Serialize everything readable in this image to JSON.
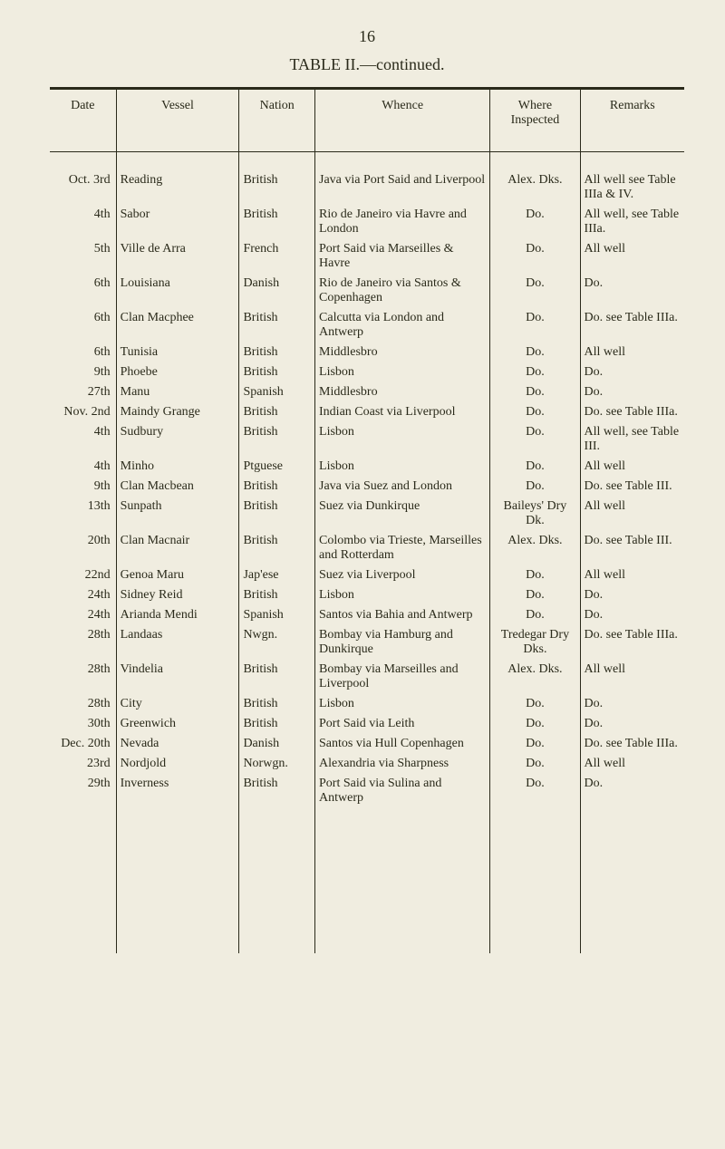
{
  "page_number": "16",
  "table_title": "TABLE II.—continued.",
  "columns": [
    "Date",
    "Vessel",
    "Nation",
    "Whence",
    "Where Inspected",
    "Remarks"
  ],
  "column_where_line2": "Inspected",
  "rows": [
    {
      "date": "Oct. 3rd",
      "vessel": "Reading",
      "nation": "British",
      "whence": "Java via Port Said and Liverpool",
      "where": "Alex. Dks.",
      "remarks": "All well see Table IIIa & IV."
    },
    {
      "date": "4th",
      "vessel": "Sabor",
      "nation": "British",
      "whence": "Rio de Janeiro via Havre and London",
      "where": "Do.",
      "remarks": "All well, see Table IIIa."
    },
    {
      "date": "5th",
      "vessel": "Ville de Arra",
      "nation": "French",
      "whence": "Port Said via Marseilles & Havre",
      "where": "Do.",
      "remarks": "All well"
    },
    {
      "date": "6th",
      "vessel": "Louisiana",
      "nation": "Danish",
      "whence": "Rio de Janeiro via Santos & Copenhagen",
      "where": "Do.",
      "remarks": "Do."
    },
    {
      "date": "6th",
      "vessel": "Clan Macphee",
      "nation": "British",
      "whence": "Calcutta via London and Antwerp",
      "where": "Do.",
      "remarks": "Do. see Table IIIa."
    },
    {
      "date": "6th",
      "vessel": "Tunisia",
      "nation": "British",
      "whence": "Middlesbro",
      "where": "Do.",
      "remarks": "All well"
    },
    {
      "date": "9th",
      "vessel": "Phoebe",
      "nation": "British",
      "whence": "Lisbon",
      "where": "Do.",
      "remarks": "Do."
    },
    {
      "date": "27th",
      "vessel": "Manu",
      "nation": "Spanish",
      "whence": "Middlesbro",
      "where": "Do.",
      "remarks": "Do."
    },
    {
      "date": "Nov. 2nd",
      "vessel": "Maindy Grange",
      "nation": "British",
      "whence": "Indian Coast via Liverpool",
      "where": "Do.",
      "remarks": "Do. see Table IIIa."
    },
    {
      "date": "4th",
      "vessel": "Sudbury",
      "nation": "British",
      "whence": "Lisbon",
      "where": "Do.",
      "remarks": "All well, see Table III."
    },
    {
      "date": "4th",
      "vessel": "Minho",
      "nation": "Ptguese",
      "whence": "Lisbon",
      "where": "Do.",
      "remarks": "All well"
    },
    {
      "date": "9th",
      "vessel": "Clan Macbean",
      "nation": "British",
      "whence": "Java via Suez and London",
      "where": "Do.",
      "remarks": "Do. see Table III."
    },
    {
      "date": "13th",
      "vessel": "Sunpath",
      "nation": "British",
      "whence": "Suez via Dunkirque",
      "where": "Baileys' Dry Dk.",
      "remarks": "All well"
    },
    {
      "date": "20th",
      "vessel": "Clan Macnair",
      "nation": "British",
      "whence": "Colombo via Trieste, Marseilles and Rotterdam",
      "where": "Alex. Dks.",
      "remarks": "Do. see Table III."
    },
    {
      "date": "22nd",
      "vessel": "Genoa Maru",
      "nation": "Jap'ese",
      "whence": "Suez via Liverpool",
      "where": "Do.",
      "remarks": "All well"
    },
    {
      "date": "24th",
      "vessel": "Sidney Reid",
      "nation": "British",
      "whence": "Lisbon",
      "where": "Do.",
      "remarks": "Do."
    },
    {
      "date": "24th",
      "vessel": "Arianda Mendi",
      "nation": "Spanish",
      "whence": "Santos via Bahia and Antwerp",
      "where": "Do.",
      "remarks": "Do."
    },
    {
      "date": "28th",
      "vessel": "Landaas",
      "nation": "Nwgn.",
      "whence": "Bombay via Hamburg and Dunkirque",
      "where": "Tredegar Dry Dks.",
      "remarks": "Do. see Table IIIa."
    },
    {
      "date": "28th",
      "vessel": "Vindelia",
      "nation": "British",
      "whence": "Bombay via Marseilles and Liverpool",
      "where": "Alex. Dks.",
      "remarks": "All well"
    },
    {
      "date": "28th",
      "vessel": "City",
      "nation": "British",
      "whence": "Lisbon",
      "where": "Do.",
      "remarks": "Do."
    },
    {
      "date": "30th",
      "vessel": "Greenwich",
      "nation": "British",
      "whence": "Port Said via Leith",
      "where": "Do.",
      "remarks": "Do."
    },
    {
      "date": "Dec. 20th",
      "vessel": "Nevada",
      "nation": "Danish",
      "whence": "Santos via Hull Copenhagen",
      "where": "Do.",
      "remarks": "Do. see Table IIIa."
    },
    {
      "date": "23rd",
      "vessel": "Nordjold",
      "nation": "Norwgn.",
      "whence": "Alexandria via Sharpness",
      "where": "Do.",
      "remarks": "All well"
    },
    {
      "date": "29th",
      "vessel": "Inverness",
      "nation": "British",
      "whence": "Port Said via Sulina and Antwerp",
      "where": "Do.",
      "remarks": "Do."
    }
  ]
}
